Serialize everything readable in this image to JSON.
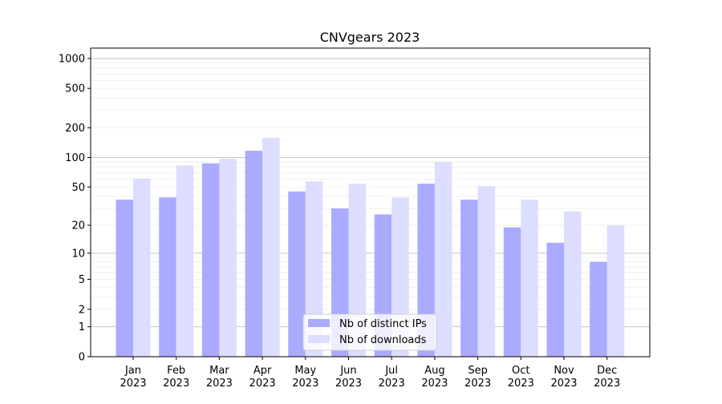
{
  "chart_data": {
    "type": "bar",
    "title": "CNVgears 2023",
    "xlabel": "",
    "ylabel": "",
    "yscale": "symlog (log10(v+1))",
    "ylim": [
      0,
      1200
    ],
    "yticks": [
      0,
      1,
      2,
      5,
      10,
      20,
      50,
      100,
      200,
      500,
      1000
    ],
    "categories": [
      "Jan\n2023",
      "Feb\n2023",
      "Mar\n2023",
      "Apr\n2023",
      "May\n2023",
      "Jun\n2023",
      "Jul\n2023",
      "Aug\n2023",
      "Sep\n2023",
      "Oct\n2023",
      "Nov\n2023",
      "Dec\n2023"
    ],
    "category_labels": [
      [
        "Jan",
        "2023"
      ],
      [
        "Feb",
        "2023"
      ],
      [
        "Mar",
        "2023"
      ],
      [
        "Apr",
        "2023"
      ],
      [
        "May",
        "2023"
      ],
      [
        "Jun",
        "2023"
      ],
      [
        "Jul",
        "2023"
      ],
      [
        "Aug",
        "2023"
      ],
      [
        "Sep",
        "2023"
      ],
      [
        "Oct",
        "2023"
      ],
      [
        "Nov",
        "2023"
      ],
      [
        "Dec",
        "2023"
      ]
    ],
    "series": [
      {
        "name": "Nb of distinct IPs",
        "color": "#aaaaff",
        "values": [
          37,
          39,
          87,
          117,
          45,
          30,
          26,
          54,
          37,
          19,
          13,
          8
        ]
      },
      {
        "name": "Nb of downloads",
        "color": "#ddddff",
        "values": [
          61,
          83,
          97,
          158,
          57,
          54,
          39,
          90,
          51,
          37,
          28,
          20
        ]
      }
    ],
    "legend": "bottom-center",
    "grid": true
  }
}
